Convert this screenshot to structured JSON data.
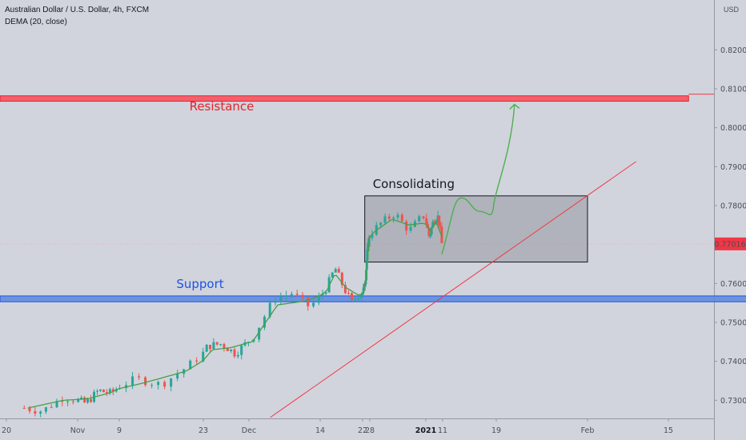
{
  "header": {
    "symbol_title": "Australian Dollar / U.S. Dollar, 4h, FXCM",
    "indicator": "DEMA (20, close)",
    "currency_label": "USD"
  },
  "chart_data": {
    "type": "candlestick",
    "y_ticks": [
      "0.82000",
      "0.81000",
      "0.80000",
      "0.79000",
      "0.78000",
      "0.76000",
      "0.75000",
      "0.74000",
      "0.73000"
    ],
    "x_ticks": [
      {
        "label": "20",
        "bold": false
      },
      {
        "label": "Nov",
        "bold": false
      },
      {
        "label": "9",
        "bold": false
      },
      {
        "label": "23",
        "bold": false
      },
      {
        "label": "Dec",
        "bold": false
      },
      {
        "label": "14",
        "bold": false
      },
      {
        "label": "22",
        "bold": false
      },
      {
        "label": "28",
        "bold": false
      },
      {
        "label": "2021",
        "bold": true
      },
      {
        "label": "11",
        "bold": false
      },
      {
        "label": "19",
        "bold": false
      },
      {
        "label": "Feb",
        "bold": false
      },
      {
        "label": "15",
        "bold": false
      }
    ],
    "ylim": [
      0.7245,
      0.8395
    ],
    "last_price": "0.77016",
    "last_price_value": 0.77016,
    "price_path_knots": [
      [
        0.25,
        0.728
      ],
      [
        0.5,
        0.7272
      ],
      [
        0.8,
        0.7308
      ],
      [
        1.2,
        0.7292
      ],
      [
        1.5,
        0.7325
      ],
      [
        1.8,
        0.7318
      ],
      [
        2.2,
        0.7355
      ],
      [
        2.5,
        0.734
      ],
      [
        2.8,
        0.7385
      ],
      [
        3.1,
        0.744
      ],
      [
        3.4,
        0.7445
      ],
      [
        3.7,
        0.742
      ],
      [
        4.05,
        0.746
      ],
      [
        4.35,
        0.756
      ],
      [
        4.6,
        0.7575
      ],
      [
        4.85,
        0.754
      ],
      [
        5.15,
        0.759
      ],
      [
        5.35,
        0.764
      ],
      [
        5.55,
        0.759
      ],
      [
        5.75,
        0.755
      ],
      [
        5.92,
        0.7575
      ],
      [
        6.15,
        0.7585
      ],
      [
        6.4,
        0.761
      ],
      [
        6.7,
        0.769
      ],
      [
        6.95,
        0.772
      ],
      [
        7.2,
        0.7755
      ],
      [
        7.45,
        0.778
      ],
      [
        7.7,
        0.7735
      ],
      [
        7.95,
        0.7775
      ],
      [
        8.2,
        0.772
      ],
      [
        8.45,
        0.776
      ],
      [
        8.7,
        0.7775
      ],
      [
        8.85,
        0.7745
      ],
      [
        8.95,
        0.7702
      ]
    ],
    "dema_path_knots": [
      [
        0.3,
        0.728
      ],
      [
        0.8,
        0.73
      ],
      [
        1.3,
        0.7305
      ],
      [
        1.8,
        0.732
      ],
      [
        2.3,
        0.7345
      ],
      [
        2.8,
        0.7375
      ],
      [
        3.2,
        0.743
      ],
      [
        3.6,
        0.7435
      ],
      [
        4.05,
        0.745
      ],
      [
        4.4,
        0.7545
      ],
      [
        4.8,
        0.7555
      ],
      [
        5.15,
        0.758
      ],
      [
        5.35,
        0.7625
      ],
      [
        5.6,
        0.759
      ],
      [
        5.9,
        0.757
      ],
      [
        6.2,
        0.758
      ],
      [
        6.5,
        0.761
      ],
      [
        6.8,
        0.769
      ],
      [
        7.1,
        0.7735
      ],
      [
        7.4,
        0.7765
      ],
      [
        7.7,
        0.775
      ],
      [
        7.95,
        0.7755
      ],
      [
        8.3,
        0.7735
      ],
      [
        8.6,
        0.776
      ],
      [
        8.95,
        0.772
      ]
    ],
    "annotations": {
      "resistance": {
        "label": "Resistance",
        "y_low": 0.8068,
        "y_high": 0.8082,
        "x_end": 12.25,
        "color": "#f7525f"
      },
      "support": {
        "label": "Support",
        "y_low": 0.7553,
        "y_high": 0.7568,
        "x_end": 13.0,
        "color": "#5b87dd"
      },
      "consolidation": {
        "label": "Consolidating",
        "x_start": 6.3,
        "x_end": 11.0,
        "y_low": 0.7655,
        "y_high": 0.7825
      },
      "trendline": {
        "x1": 4.3,
        "y1": 0.7256,
        "x2": 11.6,
        "y2": 0.7913,
        "color": "#f23645"
      },
      "projection": {
        "color": "#4caf50",
        "points": [
          [
            8.95,
            0.7675
          ],
          [
            9.35,
            0.782
          ],
          [
            9.7,
            0.7785
          ],
          [
            9.95,
            0.78
          ],
          [
            10.2,
            0.806
          ]
        ]
      }
    },
    "colors": {
      "background": "#d1d4dc",
      "up_candle": "#26a69a",
      "down_candle": "#ef5350",
      "dema": "#43a047",
      "price_badge": "#f23645",
      "price_line": "#f7a9ad"
    }
  }
}
